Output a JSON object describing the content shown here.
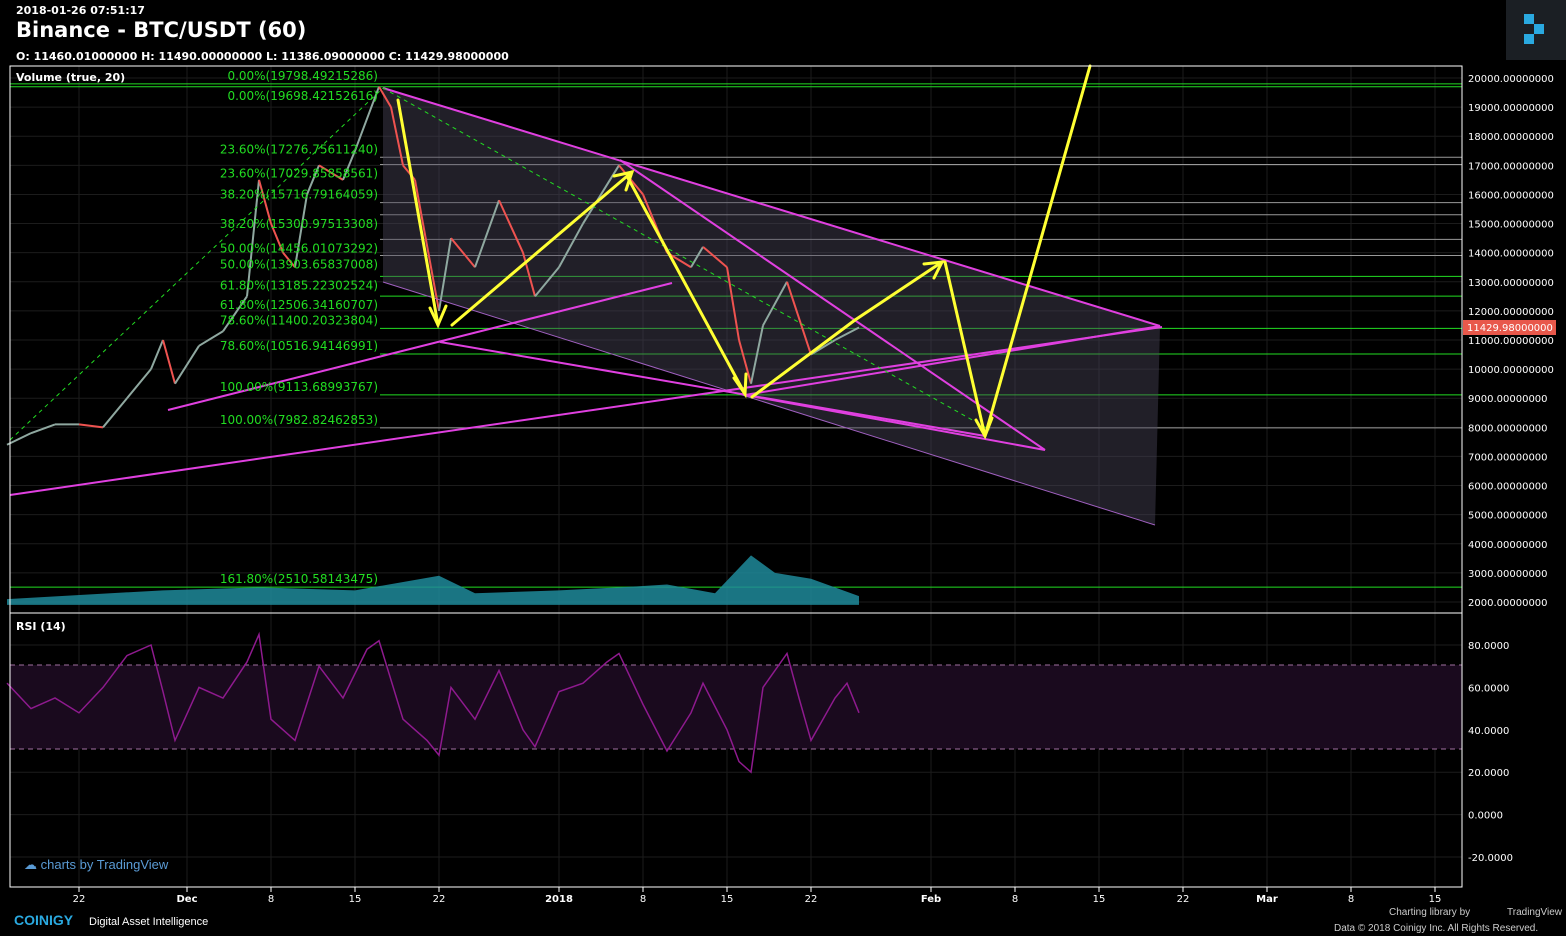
{
  "header": {
    "timestamp": "2018-01-26 07:51:17",
    "title": "Binance - BTC/USDT (60)",
    "ohlc": "O: 11460.01000000 H: 11490.00000000 L: 11386.09000000 C: 11429.98000000"
  },
  "panes": {
    "volume_label": "Volume (true, 20)",
    "rsi_label": "RSI (14)"
  },
  "footer": {
    "tv_badge": "charts by TradingView",
    "brand": "COINIGY",
    "tagline": "Digital Asset Intelligence",
    "charting_by": "Charting library by",
    "tradingview": "TradingView",
    "copyright": "Data © 2018   Coinigy Inc. All Rights Reserved."
  },
  "colors": {
    "background": "#000000",
    "up": "#26a69a",
    "down": "#ef5350",
    "fib": "#22dd22",
    "drawing_magenta": "#e040e0",
    "arrows": "#ffff33",
    "rsi": "#8e1a8e",
    "price_badge": "#e8584b"
  },
  "chart_data": [
    {
      "type": "candlestick-line",
      "title": "Binance - BTC/USDT (60)",
      "ylim": [
        2000,
        20000
      ],
      "y_ticks": [
        20000,
        19000,
        18000,
        17000,
        16000,
        15000,
        14000,
        13000,
        12000,
        11000,
        10000,
        9000,
        8000,
        7000,
        6000,
        5000,
        4000,
        3000,
        2000
      ],
      "y_tick_format": "8 decimals",
      "x_ticks": [
        {
          "date": "2017-11-22",
          "label": "22"
        },
        {
          "date": "2017-12-01",
          "label": "Dec"
        },
        {
          "date": "2017-12-08",
          "label": "8"
        },
        {
          "date": "2017-12-15",
          "label": "15"
        },
        {
          "date": "2017-12-22",
          "label": "22"
        },
        {
          "date": "2018-01-01",
          "label": "2018"
        },
        {
          "date": "2018-01-08",
          "label": "8"
        },
        {
          "date": "2018-01-15",
          "label": "15"
        },
        {
          "date": "2018-01-22",
          "label": "22"
        },
        {
          "date": "2018-02-01",
          "label": "Feb"
        },
        {
          "date": "2018-02-08",
          "label": "8"
        },
        {
          "date": "2018-02-15",
          "label": "15"
        },
        {
          "date": "2018-02-22",
          "label": "22"
        },
        {
          "date": "2018-03-01",
          "label": "Mar"
        },
        {
          "date": "2018-03-08",
          "label": "8"
        },
        {
          "date": "2018-03-15",
          "label": "15"
        }
      ],
      "last_price": "11429.98000000",
      "price": [
        [
          "2017-11-16",
          7400
        ],
        [
          "2017-11-18",
          7800
        ],
        [
          "2017-11-20",
          8100
        ],
        [
          "2017-11-22",
          8100
        ],
        [
          "2017-11-24",
          8000
        ],
        [
          "2017-11-26",
          9000
        ],
        [
          "2017-11-28",
          10000
        ],
        [
          "2017-11-29",
          11000
        ],
        [
          "2017-11-30",
          9500
        ],
        [
          "2017-12-02",
          10800
        ],
        [
          "2017-12-04",
          11300
        ],
        [
          "2017-12-06",
          12500
        ],
        [
          "2017-12-07",
          16500
        ],
        [
          "2017-12-08",
          15000
        ],
        [
          "2017-12-09",
          14000
        ],
        [
          "2017-12-10",
          13500
        ],
        [
          "2017-12-11",
          16000
        ],
        [
          "2017-12-12",
          17000
        ],
        [
          "2017-12-14",
          16500
        ],
        [
          "2017-12-15",
          17500
        ],
        [
          "2017-12-17",
          19700
        ],
        [
          "2017-12-18",
          19000
        ],
        [
          "2017-12-19",
          17000
        ],
        [
          "2017-12-20",
          16500
        ],
        [
          "2017-12-22",
          12000
        ],
        [
          "2017-12-23",
          14500
        ],
        [
          "2017-12-25",
          13500
        ],
        [
          "2017-12-27",
          15800
        ],
        [
          "2017-12-29",
          14000
        ],
        [
          "2017-12-30",
          12500
        ],
        [
          "2018-01-01",
          13500
        ],
        [
          "2018-01-03",
          15000
        ],
        [
          "2018-01-06",
          17000
        ],
        [
          "2018-01-08",
          16000
        ],
        [
          "2018-01-10",
          14000
        ],
        [
          "2018-01-12",
          13500
        ],
        [
          "2018-01-13",
          14200
        ],
        [
          "2018-01-15",
          13500
        ],
        [
          "2018-01-16",
          11000
        ],
        [
          "2018-01-17",
          9500
        ],
        [
          "2018-01-18",
          11500
        ],
        [
          "2018-01-20",
          13000
        ],
        [
          "2018-01-22",
          10500
        ],
        [
          "2018-01-24",
          11000
        ],
        [
          "2018-01-26",
          11430
        ]
      ],
      "volume": [
        [
          "2017-11-16",
          2100
        ],
        [
          "2017-11-29",
          2400
        ],
        [
          "2017-12-07",
          2500
        ],
        [
          "2017-12-15",
          2400
        ],
        [
          "2017-12-22",
          2900
        ],
        [
          "2017-12-25",
          2300
        ],
        [
          "2018-01-01",
          2400
        ],
        [
          "2018-01-06",
          2500
        ],
        [
          "2018-01-10",
          2600
        ],
        [
          "2018-01-14",
          2300
        ],
        [
          "2018-01-17",
          3600
        ],
        [
          "2018-01-19",
          3000
        ],
        [
          "2018-01-22",
          2800
        ],
        [
          "2018-01-26",
          2200
        ]
      ],
      "fib_levels": [
        {
          "label": "0.00%(19798.49215286)",
          "value": 19798,
          "color": "green"
        },
        {
          "label": "0.00%(19698.42152616)",
          "value": 19698,
          "color": "green"
        },
        {
          "label": "23.60%(17276.75611240)",
          "value": 17276,
          "color": "gray"
        },
        {
          "label": "23.60%(17029.85858561)",
          "value": 17030,
          "color": "gray"
        },
        {
          "label": "38.20%(15716.79164059)",
          "value": 15717,
          "color": "gray"
        },
        {
          "label": "38.20%(15300.97513308)",
          "value": 15301,
          "color": "gray"
        },
        {
          "label": "50.00%(14456.01073292)",
          "value": 14456,
          "color": "gray"
        },
        {
          "label": "50.00%(13903.65837008)",
          "value": 13904,
          "color": "gray"
        },
        {
          "label": "61.80%(13185.22302524)",
          "value": 13185,
          "color": "green"
        },
        {
          "label": "61.80%(12506.34160707)",
          "value": 12506,
          "color": "green"
        },
        {
          "label": "78.60%(11400.20323804)",
          "value": 11400,
          "color": "green"
        },
        {
          "label": "78.60%(10516.94146991)",
          "value": 10517,
          "color": "green"
        },
        {
          "label": "100.00%(9113.68993767)",
          "value": 9114,
          "color": "green"
        },
        {
          "label": "100.00%(7982.82462853)",
          "value": 7983,
          "color": "gray"
        },
        {
          "label": "161.80%(2510.58143475)",
          "value": 2511,
          "color": "green"
        }
      ]
    },
    {
      "type": "line",
      "title": "RSI (14)",
      "ylim": [
        -25,
        95
      ],
      "y_ticks": [
        80,
        60,
        40,
        20,
        0,
        -20
      ],
      "y_tick_format": "4 decimals",
      "bands": [
        30,
        70
      ],
      "values": [
        [
          "2017-11-16",
          62
        ],
        [
          "2017-11-18",
          50
        ],
        [
          "2017-11-20",
          55
        ],
        [
          "2017-11-22",
          48
        ],
        [
          "2017-11-24",
          60
        ],
        [
          "2017-11-26",
          75
        ],
        [
          "2017-11-28",
          80
        ],
        [
          "2017-11-29",
          58
        ],
        [
          "2017-11-30",
          35
        ],
        [
          "2017-12-02",
          60
        ],
        [
          "2017-12-04",
          55
        ],
        [
          "2017-12-06",
          72
        ],
        [
          "2017-12-07",
          85
        ],
        [
          "2017-12-08",
          45
        ],
        [
          "2017-12-10",
          35
        ],
        [
          "2017-12-12",
          70
        ],
        [
          "2017-12-14",
          55
        ],
        [
          "2017-12-16",
          78
        ],
        [
          "2017-12-17",
          82
        ],
        [
          "2017-12-19",
          45
        ],
        [
          "2017-12-21",
          35
        ],
        [
          "2017-12-22",
          28
        ],
        [
          "2017-12-23",
          60
        ],
        [
          "2017-12-25",
          45
        ],
        [
          "2017-12-27",
          68
        ],
        [
          "2017-12-29",
          40
        ],
        [
          "2017-12-30",
          32
        ],
        [
          "2018-01-01",
          58
        ],
        [
          "2018-01-03",
          62
        ],
        [
          "2018-01-05",
          72
        ],
        [
          "2018-01-06",
          76
        ],
        [
          "2018-01-08",
          52
        ],
        [
          "2018-01-10",
          30
        ],
        [
          "2018-01-12",
          48
        ],
        [
          "2018-01-13",
          62
        ],
        [
          "2018-01-15",
          40
        ],
        [
          "2018-01-16",
          25
        ],
        [
          "2018-01-17",
          20
        ],
        [
          "2018-01-18",
          60
        ],
        [
          "2018-01-20",
          76
        ],
        [
          "2018-01-21",
          55
        ],
        [
          "2018-01-22",
          35
        ],
        [
          "2018-01-24",
          55
        ],
        [
          "2018-01-25",
          62
        ],
        [
          "2018-01-26",
          48
        ]
      ]
    }
  ]
}
